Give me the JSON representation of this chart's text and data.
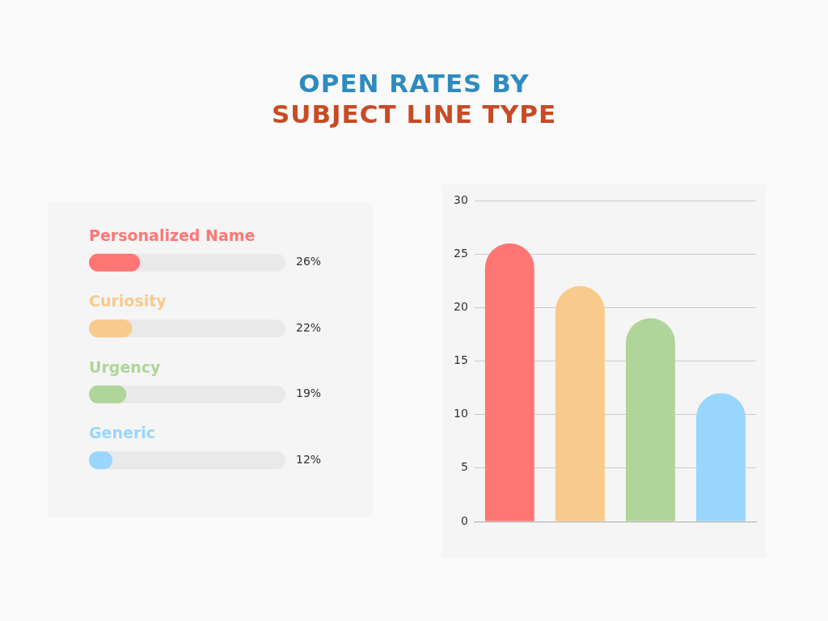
{
  "chart_data": [
    {
      "type": "bar",
      "subtitle": "SUBJECT LINE TYPE",
      "orientation": "horizontal",
      "categories": [
        "Personalized Name",
        "Curiosity",
        "Urgency",
        "Generic"
      ],
      "values": [
        26,
        22,
        19,
        12
      ],
      "colors": [
        "#ff7675",
        "#f8ca8c",
        "#afd59a",
        "#99d6fd"
      ],
      "value_labels": [
        "26%",
        "22%",
        "19%",
        "12%"
      ],
      "xlim": [
        0,
        100
      ],
      "tick_labels": "y"
    },
    {
      "type": "bar",
      "title": "OPEN RATES BY",
      "categories": [
        null,
        null,
        null,
        null
      ],
      "values": [
        26,
        22,
        19,
        12
      ],
      "colors": [
        "#ff7675",
        "#f8ca8c",
        "#afd59a",
        "#99d6fd"
      ],
      "ylim": [
        0,
        30
      ],
      "yticks": [
        0,
        5,
        10,
        15,
        20,
        25,
        30
      ],
      "grid": "y",
      "tick_labels": "y"
    }
  ]
}
